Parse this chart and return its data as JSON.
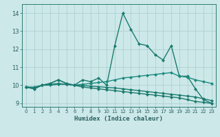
{
  "xlabel": "Humidex (Indice chaleur)",
  "x": [
    0,
    1,
    2,
    3,
    4,
    5,
    6,
    7,
    8,
    9,
    10,
    11,
    12,
    13,
    14,
    15,
    16,
    17,
    18,
    19,
    20,
    21,
    22,
    23
  ],
  "series": [
    {
      "y": [
        9.9,
        9.8,
        10.0,
        10.1,
        10.3,
        10.1,
        10.0,
        10.3,
        10.2,
        10.4,
        10.0,
        12.2,
        14.0,
        13.1,
        12.3,
        12.2,
        11.7,
        11.4,
        12.2,
        10.5,
        10.5,
        9.8,
        9.2,
        9.0
      ],
      "color": "#1a7a6e",
      "marker": "D",
      "markersize": 2.2,
      "linewidth": 1.0
    },
    {
      "y": [
        9.9,
        9.8,
        10.0,
        10.1,
        10.3,
        10.1,
        10.0,
        9.9,
        9.85,
        9.8,
        9.75,
        9.7,
        9.65,
        9.6,
        9.55,
        9.5,
        9.45,
        9.4,
        9.35,
        9.3,
        9.2,
        9.1,
        9.05,
        9.0
      ],
      "color": "#1a7a6e",
      "marker": "D",
      "markersize": 2.2,
      "linewidth": 1.0
    },
    {
      "y": [
        9.9,
        9.9,
        10.0,
        10.0,
        10.05,
        10.05,
        10.0,
        10.05,
        10.1,
        10.15,
        10.2,
        10.3,
        10.4,
        10.45,
        10.5,
        10.55,
        10.6,
        10.65,
        10.7,
        10.5,
        10.45,
        10.3,
        10.2,
        10.1
      ],
      "color": "#1a8a7e",
      "marker": "D",
      "markersize": 2.2,
      "linewidth": 1.0
    },
    {
      "y": [
        9.9,
        9.85,
        10.0,
        10.05,
        10.1,
        10.05,
        10.0,
        9.98,
        9.95,
        9.92,
        9.88,
        9.85,
        9.8,
        9.75,
        9.7,
        9.65,
        9.6,
        9.55,
        9.5,
        9.45,
        9.4,
        9.35,
        9.25,
        9.15
      ],
      "color": "#1a7a6e",
      "marker": "D",
      "markersize": 2.2,
      "linewidth": 1.0
    }
  ],
  "ylim": [
    8.8,
    14.5
  ],
  "yticks": [
    9,
    10,
    11,
    12,
    13,
    14
  ],
  "xlim": [
    -0.5,
    23.5
  ],
  "xticks": [
    0,
    1,
    2,
    3,
    4,
    5,
    6,
    7,
    8,
    9,
    10,
    11,
    12,
    13,
    14,
    15,
    16,
    17,
    18,
    19,
    20,
    21,
    22,
    23
  ],
  "bg_color": "#cce8e8",
  "grid_color": "#aacccc",
  "axis_color": "#2a7a70",
  "tick_color": "#2a6060",
  "label_color": "#2a6060"
}
